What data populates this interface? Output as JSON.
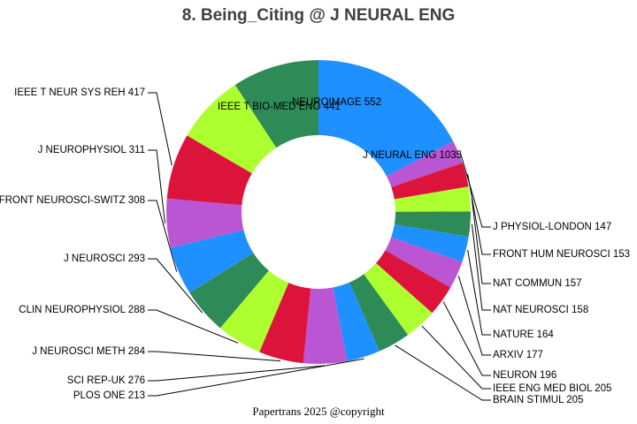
{
  "chart_data": {
    "type": "pie",
    "title": "8. Being_Citing @ J NEURAL ENG",
    "footer": "Papertrans 2025 @copyright",
    "slices": [
      {
        "label": "J NEURAL ENG",
        "value": 1035,
        "color": "#1e90ff"
      },
      {
        "label": "J PHYSIOL-LONDON",
        "value": 147,
        "color": "#ba55d3"
      },
      {
        "label": "FRONT HUM NEUROSCI",
        "value": 153,
        "color": "#dc143c"
      },
      {
        "label": "NAT COMMUN",
        "value": 157,
        "color": "#adff2f"
      },
      {
        "label": "NAT NEUROSCI",
        "value": 158,
        "color": "#2e8b57"
      },
      {
        "label": "NATURE",
        "value": 164,
        "color": "#1e90ff"
      },
      {
        "label": "ARXIV",
        "value": 177,
        "color": "#ba55d3"
      },
      {
        "label": "NEURON",
        "value": 196,
        "color": "#dc143c"
      },
      {
        "label": "IEEE ENG MED BIOL",
        "value": 205,
        "color": "#adff2f"
      },
      {
        "label": "BRAIN STIMUL",
        "value": 205,
        "color": "#2e8b57"
      },
      {
        "label": "PLOS ONE",
        "value": 213,
        "color": "#1e90ff"
      },
      {
        "label": "SCI REP-UK",
        "value": 276,
        "color": "#ba55d3"
      },
      {
        "label": "J NEUROSCI METH",
        "value": 284,
        "color": "#dc143c"
      },
      {
        "label": "CLIN NEUROPHYSIOL",
        "value": 288,
        "color": "#adff2f"
      },
      {
        "label": "J NEUROSCI",
        "value": 293,
        "color": "#2e8b57"
      },
      {
        "label": "FRONT NEUROSCI-SWITZ",
        "value": 308,
        "color": "#1e90ff"
      },
      {
        "label": "J NEUROPHYSIOL",
        "value": 311,
        "color": "#ba55d3"
      },
      {
        "label": "IEEE T NEUR SYS REH",
        "value": 417,
        "color": "#dc143c"
      },
      {
        "label": "IEEE T BIO-MED ENG",
        "value": 441,
        "color": "#adff2f"
      },
      {
        "label": "NEUROIMAGE",
        "value": 552,
        "color": "#2e8b57"
      }
    ]
  }
}
